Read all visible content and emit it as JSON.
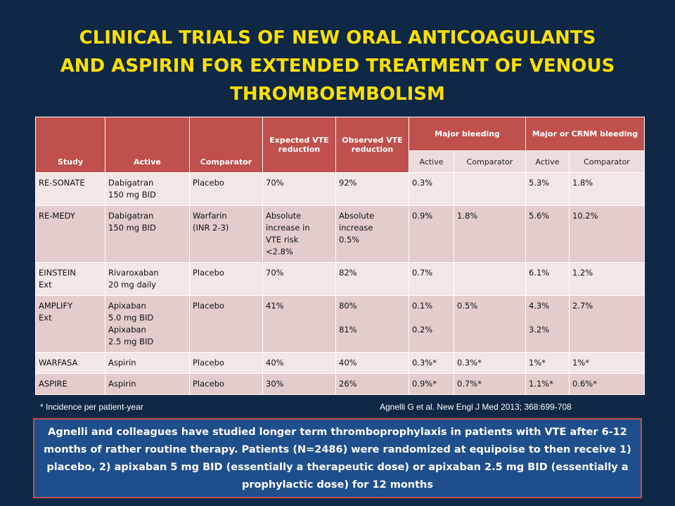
{
  "title": {
    "line1": "CLINICAL TRIALS OF NEW ORAL ANTICOAGULANTS",
    "line2": "AND ASPIRIN FOR EXTENDED TREATMENT OF VENOUS",
    "line3": "THROMBOEMBOLISM"
  },
  "colors": {
    "background": "#0f2845",
    "title": "#ffe000",
    "header": "#c0504d",
    "row_light": "#f2e6e6",
    "row_dark": "#e4cccc",
    "summary_box": "#1f4e8c"
  },
  "table": {
    "headers": {
      "study": "Study",
      "active": "Active",
      "comparator": "Comparator",
      "expected": "Expected VTE reduction",
      "observed": "Observed VTE reduction",
      "major_bleeding": "Major bleeding",
      "crnm_bleeding": "Major or CRNM bleeding",
      "sub_active_1": "Active",
      "sub_comparator_1": "Comparator",
      "sub_active_2": "Active",
      "sub_comparator_2": "Comparator"
    },
    "rows": [
      {
        "study": [
          "RE-SONATE"
        ],
        "active": [
          "Dabigatran",
          "150 mg BID"
        ],
        "comparator": [
          "Placebo"
        ],
        "expected": [
          "70%"
        ],
        "observed": [
          "92%"
        ],
        "mb_active": [
          "0.3%"
        ],
        "mb_comparator": [],
        "crnm_active": [
          "5.3%"
        ],
        "crnm_comparator": [
          "1.8%"
        ]
      },
      {
        "study": [
          "RE-MEDY"
        ],
        "active": [
          "Dabigatran",
          "150 mg BID"
        ],
        "comparator": [
          "Warfarin",
          "(INR 2-3)"
        ],
        "expected": [
          "Absolute",
          "increase in",
          "VTE risk",
          "<2.8%"
        ],
        "observed": [
          "Absolute",
          "increase",
          "0.5%"
        ],
        "mb_active": [
          "0.9%"
        ],
        "mb_comparator": [
          "1.8%"
        ],
        "crnm_active": [
          "5.6%"
        ],
        "crnm_comparator": [
          "10.2%"
        ]
      },
      {
        "study": [
          "EINSTEIN",
          "Ext"
        ],
        "active": [
          "Rivaroxaban",
          "20 mg daily"
        ],
        "comparator": [
          "Placebo"
        ],
        "expected": [
          "70%"
        ],
        "observed": [
          "82%"
        ],
        "mb_active": [
          "0.7%"
        ],
        "mb_comparator": [],
        "crnm_active": [
          "6.1%"
        ],
        "crnm_comparator": [
          "1.2%"
        ]
      },
      {
        "study": [
          "AMPLIFY",
          "Ext"
        ],
        "active": [
          "Apixaban",
          "5.0 mg BID",
          "Apixaban",
          "2.5 mg BID"
        ],
        "comparator": [
          "Placebo"
        ],
        "expected": [
          "41%"
        ],
        "observed": [
          "80%",
          "",
          "81%"
        ],
        "mb_active": [
          "0.1%",
          "",
          "0.2%"
        ],
        "mb_comparator": [
          "0.5%"
        ],
        "crnm_active": [
          "4.3%",
          "",
          "3.2%"
        ],
        "crnm_comparator": [
          "2.7%"
        ]
      },
      {
        "study": [
          "WARFASA"
        ],
        "active": [
          "Aspirin"
        ],
        "comparator": [
          "Placebo"
        ],
        "expected": [
          "40%"
        ],
        "observed": [
          "40%"
        ],
        "mb_active": [
          "0.3%*"
        ],
        "mb_comparator": [
          "0.3%*"
        ],
        "crnm_active": [
          "1%*"
        ],
        "crnm_comparator": [
          "1%*"
        ]
      },
      {
        "study": [
          "ASPIRE"
        ],
        "active": [
          "Aspirin"
        ],
        "comparator": [
          "Placebo"
        ],
        "expected": [
          "30%"
        ],
        "observed": [
          "26%"
        ],
        "mb_active": [
          "0.9%*"
        ],
        "mb_comparator": [
          "0.7%*"
        ],
        "crnm_active": [
          "1.1%*"
        ],
        "crnm_comparator": [
          "0.6%*"
        ]
      }
    ]
  },
  "footnote": "* Incidence per patient-year",
  "citation": "Agnelli G et al.  New Engl J Med 2013; 368:699-708",
  "summary": "Agnelli and colleagues have studied longer term thromboprophylaxis in patients with VTE after 6-12 months of rather routine therapy. Patients (N=2486) were randomized at equipoise to then receive 1) placebo, 2) apixaban 5 mg BID (essentially a therapeutic dose) or apixaban 2.5 mg BID (essentially a prophylactic dose) for 12 months"
}
